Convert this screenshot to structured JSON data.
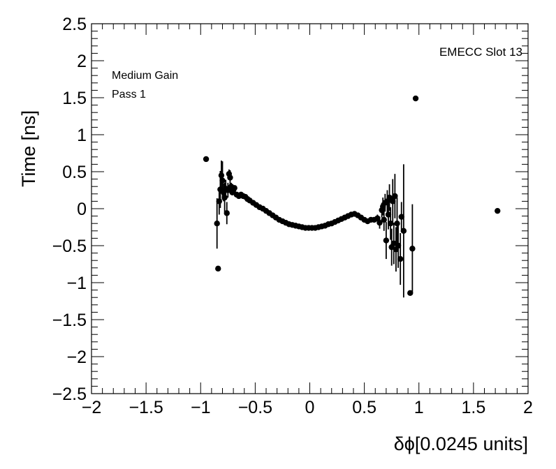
{
  "chart_data": {
    "type": "scatter",
    "title": "",
    "xlabel": "δϕ[0.0245 units]",
    "ylabel": "Time [ns]",
    "xlim": [
      -2,
      2
    ],
    "ylim": [
      -2.5,
      2.5
    ],
    "x_ticks": [
      -2,
      -1.5,
      -1,
      -0.5,
      0,
      0.5,
      1,
      1.5,
      2
    ],
    "x_tick_labels": [
      "−2",
      "−1.5",
      "−1",
      "−0.5",
      "0",
      "0.5",
      "1",
      "1.5",
      "2"
    ],
    "y_ticks": [
      -2.5,
      -2,
      -1.5,
      -1,
      -0.5,
      0,
      0.5,
      1,
      1.5,
      2,
      2.5
    ],
    "y_tick_labels": [
      "−2.5",
      "−2",
      "−1.5",
      "−1",
      "−0.5",
      "0",
      "0.5",
      "1",
      "1.5",
      "2",
      "2.5"
    ],
    "grid": false,
    "annotations": {
      "top_right": "EMECC Slot 13",
      "line1": "Medium Gain",
      "line2": "Pass 1"
    },
    "marker_color": "#000000",
    "points": [
      {
        "x": -0.95,
        "y": 0.67,
        "err": 0
      },
      {
        "x": -0.85,
        "y": -0.2,
        "err": 0.34
      },
      {
        "x": -0.84,
        "y": -0.81,
        "err": 0
      },
      {
        "x": -0.83,
        "y": 0.1,
        "err": 0.18
      },
      {
        "x": -0.82,
        "y": 0.26,
        "err": 0.25
      },
      {
        "x": -0.81,
        "y": 0.45,
        "err": 0.2
      },
      {
        "x": -0.8,
        "y": 0.38,
        "err": 0.26
      },
      {
        "x": -0.79,
        "y": 0.22,
        "err": 0.12
      },
      {
        "x": -0.78,
        "y": 0.15,
        "err": 0.2
      },
      {
        "x": -0.77,
        "y": 0.27,
        "err": 0.12
      },
      {
        "x": -0.76,
        "y": -0.06,
        "err": 0.15
      },
      {
        "x": -0.75,
        "y": 0.25,
        "err": 0.1
      },
      {
        "x": -0.74,
        "y": 0.47,
        "err": 0.06
      },
      {
        "x": -0.73,
        "y": 0.42,
        "err": 0.1
      },
      {
        "x": -0.72,
        "y": 0.3,
        "err": 0.05
      },
      {
        "x": -0.71,
        "y": 0.22,
        "err": 0.04
      },
      {
        "x": -0.7,
        "y": 0.25,
        "err": 0.03
      },
      {
        "x": -0.69,
        "y": 0.28,
        "err": 0.03
      },
      {
        "x": -0.67,
        "y": 0.19,
        "err": 0.03
      },
      {
        "x": -0.65,
        "y": 0.17,
        "err": 0.02
      },
      {
        "x": -0.63,
        "y": 0.19,
        "err": 0.02
      },
      {
        "x": -0.61,
        "y": 0.17,
        "err": 0.02
      },
      {
        "x": -0.59,
        "y": 0.16,
        "err": 0.02
      },
      {
        "x": -0.57,
        "y": 0.13,
        "err": 0.01
      },
      {
        "x": -0.55,
        "y": 0.11,
        "err": 0.01
      },
      {
        "x": -0.52,
        "y": 0.08,
        "err": 0.01
      },
      {
        "x": -0.49,
        "y": 0.05,
        "err": 0
      },
      {
        "x": -0.46,
        "y": 0.02,
        "err": 0
      },
      {
        "x": -0.43,
        "y": 0.0,
        "err": 0
      },
      {
        "x": -0.4,
        "y": -0.03,
        "err": 0
      },
      {
        "x": -0.37,
        "y": -0.06,
        "err": 0
      },
      {
        "x": -0.34,
        "y": -0.09,
        "err": 0
      },
      {
        "x": -0.31,
        "y": -0.12,
        "err": 0
      },
      {
        "x": -0.28,
        "y": -0.15,
        "err": 0
      },
      {
        "x": -0.25,
        "y": -0.17,
        "err": 0
      },
      {
        "x": -0.22,
        "y": -0.19,
        "err": 0
      },
      {
        "x": -0.19,
        "y": -0.21,
        "err": 0
      },
      {
        "x": -0.16,
        "y": -0.22,
        "err": 0
      },
      {
        "x": -0.13,
        "y": -0.23,
        "err": 0
      },
      {
        "x": -0.1,
        "y": -0.24,
        "err": 0
      },
      {
        "x": -0.07,
        "y": -0.25,
        "err": 0
      },
      {
        "x": -0.04,
        "y": -0.26,
        "err": 0
      },
      {
        "x": -0.01,
        "y": -0.26,
        "err": 0
      },
      {
        "x": 0.02,
        "y": -0.26,
        "err": 0
      },
      {
        "x": 0.05,
        "y": -0.26,
        "err": 0
      },
      {
        "x": 0.08,
        "y": -0.25,
        "err": 0
      },
      {
        "x": 0.11,
        "y": -0.24,
        "err": 0
      },
      {
        "x": 0.14,
        "y": -0.23,
        "err": 0
      },
      {
        "x": 0.17,
        "y": -0.21,
        "err": 0
      },
      {
        "x": 0.2,
        "y": -0.2,
        "err": 0
      },
      {
        "x": 0.23,
        "y": -0.18,
        "err": 0
      },
      {
        "x": 0.26,
        "y": -0.16,
        "err": 0
      },
      {
        "x": 0.29,
        "y": -0.14,
        "err": 0
      },
      {
        "x": 0.32,
        "y": -0.12,
        "err": 0
      },
      {
        "x": 0.35,
        "y": -0.1,
        "err": 0
      },
      {
        "x": 0.38,
        "y": -0.08,
        "err": 0
      },
      {
        "x": 0.41,
        "y": -0.07,
        "err": 0
      },
      {
        "x": 0.44,
        "y": -0.09,
        "err": 0
      },
      {
        "x": 0.47,
        "y": -0.12,
        "err": 0
      },
      {
        "x": 0.5,
        "y": -0.15,
        "err": 0
      },
      {
        "x": 0.53,
        "y": -0.17,
        "err": 0.01
      },
      {
        "x": 0.56,
        "y": -0.15,
        "err": 0.02
      },
      {
        "x": 0.59,
        "y": -0.15,
        "err": 0.03
      },
      {
        "x": 0.62,
        "y": -0.13,
        "err": 0.05
      },
      {
        "x": 0.64,
        "y": -0.19,
        "err": 0.08
      },
      {
        "x": 0.66,
        "y": -0.02,
        "err": 0.1
      },
      {
        "x": 0.67,
        "y": 0.03,
        "err": 0.12
      },
      {
        "x": 0.68,
        "y": -0.15,
        "err": 0.15
      },
      {
        "x": 0.69,
        "y": 0.08,
        "err": 0.12
      },
      {
        "x": 0.7,
        "y": -0.43,
        "err": 0.25
      },
      {
        "x": 0.71,
        "y": 0.1,
        "err": 0.15
      },
      {
        "x": 0.72,
        "y": -0.08,
        "err": 0.2
      },
      {
        "x": 0.73,
        "y": 0.15,
        "err": 0.18
      },
      {
        "x": 0.74,
        "y": -0.2,
        "err": 0.22
      },
      {
        "x": 0.75,
        "y": -0.52,
        "err": 0.25
      },
      {
        "x": 0.76,
        "y": 0.1,
        "err": 0.3
      },
      {
        "x": 0.77,
        "y": -0.47,
        "err": 0.28
      },
      {
        "x": 0.78,
        "y": 0.17,
        "err": 0.3
      },
      {
        "x": 0.79,
        "y": -0.55,
        "err": 0.3
      },
      {
        "x": 0.8,
        "y": -0.2,
        "err": 0.35
      },
      {
        "x": 0.81,
        "y": -0.5,
        "err": 0.3
      },
      {
        "x": 0.83,
        "y": -0.68,
        "err": 0.35
      },
      {
        "x": 0.84,
        "y": -0.11,
        "err": 0.2
      },
      {
        "x": 0.86,
        "y": -0.3,
        "err": 0.9
      },
      {
        "x": 0.92,
        "y": -1.14,
        "err": 0
      },
      {
        "x": 0.94,
        "y": -0.54,
        "err": 0.6
      },
      {
        "x": 0.97,
        "y": 1.49,
        "err": 0
      },
      {
        "x": 1.72,
        "y": -0.03,
        "err": 0
      }
    ]
  }
}
